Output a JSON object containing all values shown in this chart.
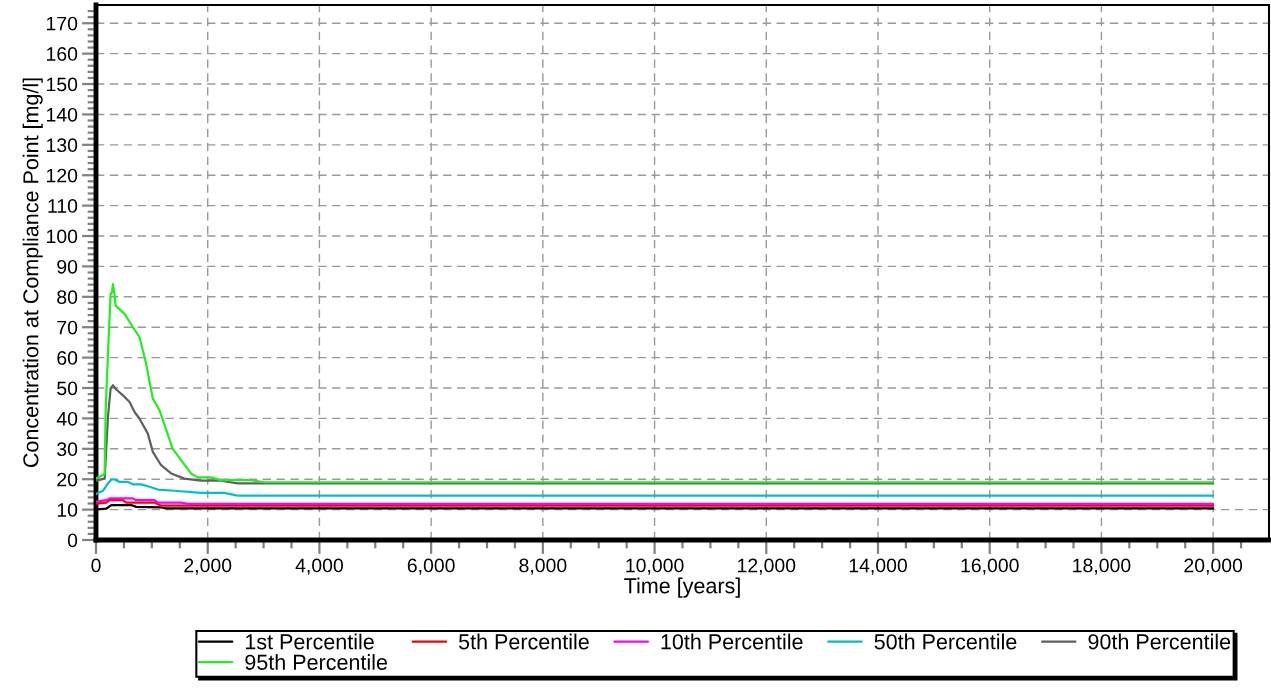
{
  "chart_data": {
    "type": "line",
    "xlabel": "Time [years]",
    "ylabel": "Concentration at Compliance Point [mg/l]",
    "xlim": [
      0,
      21000
    ],
    "ylim": [
      0,
      176
    ],
    "xticks": [
      0,
      {
        "value": 500,
        "label": null
      },
      {
        "value": 1000,
        "label": null
      },
      {
        "value": 1500,
        "label": null
      },
      {
        "value": 2000,
        "label": "2,000"
      },
      {
        "value": 2500,
        "label": null
      },
      {
        "value": 3000,
        "label": null
      },
      {
        "value": 3500,
        "label": null
      },
      {
        "value": 4000,
        "label": "4,000"
      },
      {
        "value": 4500,
        "label": null
      },
      {
        "value": 5000,
        "label": null
      },
      {
        "value": 5500,
        "label": null
      },
      {
        "value": 6000,
        "label": "6,000"
      },
      {
        "value": 6500,
        "label": null
      },
      {
        "value": 7000,
        "label": null
      },
      {
        "value": 7500,
        "label": null
      },
      {
        "value": 8000,
        "label": "8,000"
      },
      {
        "value": 8500,
        "label": null
      },
      {
        "value": 9000,
        "label": null
      },
      {
        "value": 9500,
        "label": null
      },
      {
        "value": 10000,
        "label": "10,000"
      },
      {
        "value": 10500,
        "label": null
      },
      {
        "value": 11000,
        "label": null
      },
      {
        "value": 11500,
        "label": null
      },
      {
        "value": 12000,
        "label": "12,000"
      },
      {
        "value": 12500,
        "label": null
      },
      {
        "value": 13000,
        "label": null
      },
      {
        "value": 13500,
        "label": null
      },
      {
        "value": 14000,
        "label": "14,000"
      },
      {
        "value": 14500,
        "label": null
      },
      {
        "value": 15000,
        "label": null
      },
      {
        "value": 15500,
        "label": null
      },
      {
        "value": 16000,
        "label": "16,000"
      },
      {
        "value": 16500,
        "label": null
      },
      {
        "value": 17000,
        "label": null
      },
      {
        "value": 17500,
        "label": null
      },
      {
        "value": 18000,
        "label": "18,000"
      },
      {
        "value": 18500,
        "label": null
      },
      {
        "value": 19000,
        "label": null
      },
      {
        "value": 19500,
        "label": null
      },
      {
        "value": 20000,
        "label": "20,000"
      },
      {
        "value": 20500,
        "label": null
      }
    ],
    "yticks": [
      0,
      {
        "value": 2,
        "label": null
      },
      {
        "value": 4,
        "label": null
      },
      {
        "value": 6,
        "label": null
      },
      {
        "value": 8,
        "label": null
      },
      10,
      {
        "value": 12,
        "label": null
      },
      {
        "value": 14,
        "label": null
      },
      {
        "value": 16,
        "label": null
      },
      {
        "value": 18,
        "label": null
      },
      20,
      {
        "value": 22,
        "label": null
      },
      {
        "value": 24,
        "label": null
      },
      {
        "value": 26,
        "label": null
      },
      {
        "value": 28,
        "label": null
      },
      30,
      {
        "value": 32,
        "label": null
      },
      {
        "value": 34,
        "label": null
      },
      {
        "value": 36,
        "label": null
      },
      {
        "value": 38,
        "label": null
      },
      40,
      {
        "value": 42,
        "label": null
      },
      {
        "value": 44,
        "label": null
      },
      {
        "value": 46,
        "label": null
      },
      {
        "value": 48,
        "label": null
      },
      50,
      {
        "value": 52,
        "label": null
      },
      {
        "value": 54,
        "label": null
      },
      {
        "value": 56,
        "label": null
      },
      {
        "value": 58,
        "label": null
      },
      60,
      {
        "value": 62,
        "label": null
      },
      {
        "value": 64,
        "label": null
      },
      {
        "value": 66,
        "label": null
      },
      {
        "value": 68,
        "label": null
      },
      70,
      {
        "value": 72,
        "label": null
      },
      {
        "value": 74,
        "label": null
      },
      {
        "value": 76,
        "label": null
      },
      {
        "value": 78,
        "label": null
      },
      80,
      {
        "value": 82,
        "label": null
      },
      {
        "value": 84,
        "label": null
      },
      {
        "value": 86,
        "label": null
      },
      {
        "value": 88,
        "label": null
      },
      90,
      {
        "value": 92,
        "label": null
      },
      {
        "value": 94,
        "label": null
      },
      {
        "value": 96,
        "label": null
      },
      {
        "value": 98,
        "label": null
      },
      100,
      {
        "value": 102,
        "label": null
      },
      {
        "value": 104,
        "label": null
      },
      {
        "value": 106,
        "label": null
      },
      {
        "value": 108,
        "label": null
      },
      110,
      {
        "value": 112,
        "label": null
      },
      {
        "value": 114,
        "label": null
      },
      {
        "value": 116,
        "label": null
      },
      {
        "value": 118,
        "label": null
      },
      120,
      {
        "value": 122,
        "label": null
      },
      {
        "value": 124,
        "label": null
      },
      {
        "value": 126,
        "label": null
      },
      {
        "value": 128,
        "label": null
      },
      130,
      {
        "value": 132,
        "label": null
      },
      {
        "value": 134,
        "label": null
      },
      {
        "value": 136,
        "label": null
      },
      {
        "value": 138,
        "label": null
      },
      140,
      {
        "value": 142,
        "label": null
      },
      {
        "value": 144,
        "label": null
      },
      {
        "value": 146,
        "label": null
      },
      {
        "value": 148,
        "label": null
      },
      150,
      {
        "value": 152,
        "label": null
      },
      {
        "value": 154,
        "label": null
      },
      {
        "value": 156,
        "label": null
      },
      {
        "value": 158,
        "label": null
      },
      160,
      {
        "value": 162,
        "label": null
      },
      {
        "value": 164,
        "label": null
      },
      {
        "value": 166,
        "label": null
      },
      {
        "value": 168,
        "label": null
      },
      170,
      {
        "value": 172,
        "label": null
      },
      {
        "value": 174,
        "label": null
      }
    ],
    "grid": true,
    "legend": "bottom",
    "line_style": "solid",
    "series": [
      {
        "name": "1st Percentile",
        "color": "#000000",
        "x": [
          0,
          180,
          214,
          274,
          631,
          720,
          1166,
          1255,
          20000
        ],
        "values": [
          10.1,
          10.3,
          10.7,
          11.5,
          11.5,
          10.9,
          10.7,
          10.4,
          10.4
        ]
      },
      {
        "name": "5th Percentile",
        "color": "#ff0000",
        "x": [
          0,
          184,
          244,
          482,
          541,
          1047,
          1166,
          20000
        ],
        "values": [
          12.0,
          12.3,
          13.1,
          13.1,
          12.3,
          12.3,
          11.3,
          11.3
        ]
      },
      {
        "name": "10th Percentile",
        "color": "#ff00ff",
        "x": [
          0,
          184,
          244,
          660,
          720,
          1047,
          1107,
          1523,
          1642,
          20000
        ],
        "values": [
          12.6,
          13.1,
          13.7,
          13.7,
          13.1,
          13.1,
          12.3,
          12.3,
          11.9,
          11.9
        ]
      },
      {
        "name": "50th Percentile",
        "color": "#00c0c8",
        "x": [
          0,
          125,
          214,
          274,
          333,
          422,
          571,
          660,
          809,
          958,
          1107,
          1404,
          1880,
          2297,
          2535,
          20000
        ],
        "values": [
          15.1,
          16.2,
          18.6,
          19.9,
          19.9,
          19.1,
          19.1,
          18.3,
          18.3,
          17.5,
          16.6,
          16.2,
          15.5,
          15.5,
          14.6,
          14.6
        ]
      },
      {
        "name": "90th Percentile",
        "color": "#606060",
        "x": [
          0,
          155,
          214,
          262,
          303,
          363,
          482,
          601,
          690,
          780,
          928,
          1017,
          1166,
          1345,
          1583,
          1880,
          2237,
          2535,
          20000
        ],
        "values": [
          19.5,
          20.2,
          40.5,
          49.8,
          50.9,
          49.5,
          47.6,
          45.4,
          42.1,
          39.9,
          35.0,
          29.0,
          24.6,
          21.9,
          20.2,
          19.5,
          19.5,
          18.6,
          18.6
        ]
      },
      {
        "name": "95th Percentile",
        "color": "#22ee22",
        "x": [
          0,
          155,
          173,
          214,
          262,
          286,
          303,
          333,
          351,
          512,
          660,
          780,
          898,
          1017,
          1136,
          1374,
          1700,
          1820,
          2060,
          2240,
          2770,
          3010,
          20000
        ],
        "values": [
          20.2,
          21.7,
          42.7,
          61.0,
          81.0,
          81.5,
          84.2,
          80.4,
          77.1,
          74.4,
          70.0,
          66.7,
          58.0,
          46.5,
          42.7,
          30.0,
          21.9,
          20.6,
          20.6,
          19.7,
          19.7,
          19.0,
          19.0
        ]
      }
    ]
  }
}
